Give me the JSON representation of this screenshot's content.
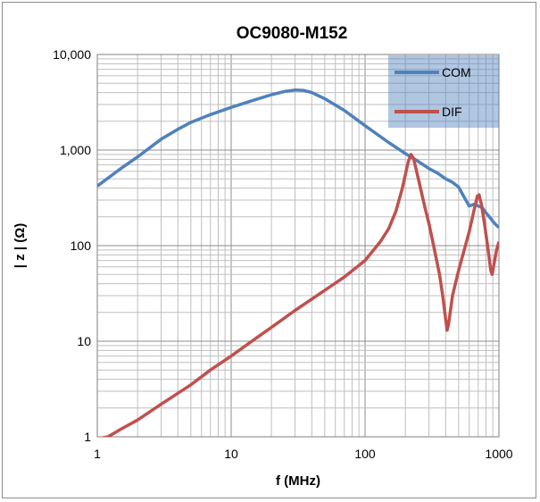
{
  "chart_data": {
    "type": "line",
    "title": "OC9080-M152",
    "xlabel": "f (MHz)",
    "ylabel": "| z |  (Ω)",
    "x_scale": "log",
    "y_scale": "log",
    "xlim": [
      1,
      1000
    ],
    "ylim": [
      1,
      10000
    ],
    "x_ticks": [
      1,
      10,
      100,
      1000
    ],
    "x_tick_labels": [
      "1",
      "10",
      "100",
      "1000"
    ],
    "y_ticks": [
      1,
      10,
      100,
      1000,
      10000
    ],
    "y_tick_labels": [
      "1",
      "10",
      "100",
      "1,000",
      "10,000"
    ],
    "grid": true,
    "legend_position": "top-right",
    "series": [
      {
        "name": "COM",
        "color": "#4f81bd",
        "points": [
          [
            1,
            420
          ],
          [
            1.5,
            640
          ],
          [
            2,
            850
          ],
          [
            3,
            1300
          ],
          [
            4,
            1650
          ],
          [
            5,
            1950
          ],
          [
            7,
            2350
          ],
          [
            10,
            2800
          ],
          [
            15,
            3350
          ],
          [
            20,
            3800
          ],
          [
            25,
            4100
          ],
          [
            30,
            4250
          ],
          [
            35,
            4200
          ],
          [
            40,
            4000
          ],
          [
            50,
            3450
          ],
          [
            70,
            2600
          ],
          [
            100,
            1800
          ],
          [
            150,
            1200
          ],
          [
            200,
            920
          ],
          [
            250,
            760
          ],
          [
            300,
            640
          ],
          [
            350,
            570
          ],
          [
            400,
            500
          ],
          [
            450,
            460
          ],
          [
            500,
            410
          ],
          [
            550,
            320
          ],
          [
            600,
            260
          ],
          [
            650,
            270
          ],
          [
            700,
            260
          ],
          [
            750,
            250
          ],
          [
            800,
            220
          ],
          [
            850,
            200
          ],
          [
            900,
            180
          ],
          [
            950,
            165
          ],
          [
            1000,
            155
          ]
        ]
      },
      {
        "name": "DIF",
        "color": "#c0504d",
        "points": [
          [
            1,
            0.95
          ],
          [
            1.2,
            1.0
          ],
          [
            1.5,
            1.2
          ],
          [
            2,
            1.5
          ],
          [
            3,
            2.2
          ],
          [
            5,
            3.5
          ],
          [
            7,
            5
          ],
          [
            10,
            7
          ],
          [
            15,
            10.5
          ],
          [
            20,
            14
          ],
          [
            30,
            21
          ],
          [
            50,
            34
          ],
          [
            70,
            47
          ],
          [
            100,
            70
          ],
          [
            130,
            110
          ],
          [
            150,
            150
          ],
          [
            170,
            230
          ],
          [
            190,
            400
          ],
          [
            210,
            750
          ],
          [
            220,
            900
          ],
          [
            230,
            820
          ],
          [
            250,
            500
          ],
          [
            280,
            250
          ],
          [
            300,
            170
          ],
          [
            330,
            90
          ],
          [
            360,
            50
          ],
          [
            380,
            30
          ],
          [
            400,
            17
          ],
          [
            410,
            13
          ],
          [
            420,
            15
          ],
          [
            450,
            30
          ],
          [
            500,
            55
          ],
          [
            550,
            90
          ],
          [
            600,
            140
          ],
          [
            650,
            230
          ],
          [
            690,
            330
          ],
          [
            710,
            340
          ],
          [
            740,
            270
          ],
          [
            780,
            170
          ],
          [
            830,
            90
          ],
          [
            870,
            55
          ],
          [
            890,
            50
          ],
          [
            920,
            65
          ],
          [
            960,
            90
          ],
          [
            1000,
            110
          ]
        ]
      }
    ]
  }
}
